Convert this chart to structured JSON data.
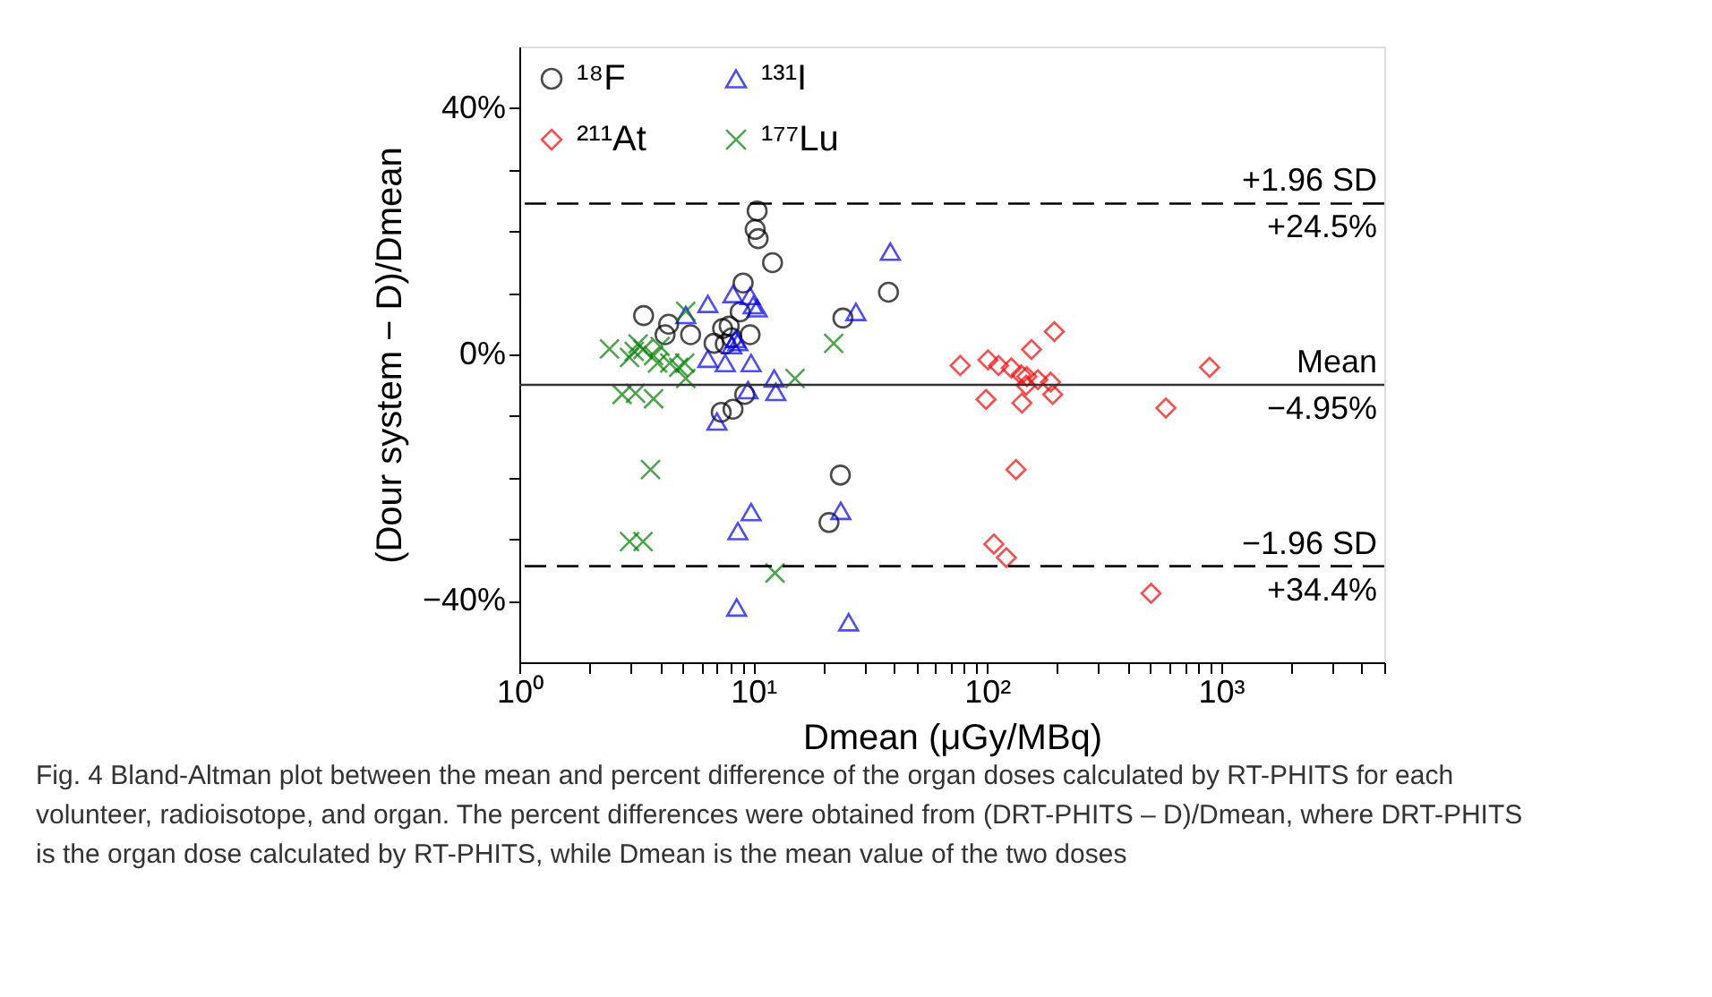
{
  "chart_data": {
    "type": "scatter",
    "xlabel": "Dmean (μGy/MBq)",
    "ylabel": "(Dour system − D)/Dmean",
    "log": "x",
    "grid": false,
    "legend": "top left",
    "xlim": [
      1,
      5000
    ],
    "xticks": [
      {
        "value": 1,
        "label": "10⁰"
      },
      {
        "value": 2,
        "label": null
      },
      {
        "value": 3,
        "label": null
      },
      {
        "value": 4,
        "label": null
      },
      {
        "value": 5,
        "label": null
      },
      {
        "value": 6,
        "label": null
      },
      {
        "value": 7,
        "label": null
      },
      {
        "value": 8,
        "label": null
      },
      {
        "value": 9,
        "label": null
      },
      {
        "value": 10,
        "label": "10¹"
      },
      {
        "value": 20,
        "label": null
      },
      {
        "value": 30,
        "label": null
      },
      {
        "value": 40,
        "label": null
      },
      {
        "value": 50,
        "label": null
      },
      {
        "value": 60,
        "label": null
      },
      {
        "value": 70,
        "label": null
      },
      {
        "value": 80,
        "label": null
      },
      {
        "value": 90,
        "label": null
      },
      {
        "value": 100,
        "label": "10²"
      },
      {
        "value": 200,
        "label": null
      },
      {
        "value": 300,
        "label": null
      },
      {
        "value": 400,
        "label": null
      },
      {
        "value": 500,
        "label": null
      },
      {
        "value": 600,
        "label": null
      },
      {
        "value": 700,
        "label": null
      },
      {
        "value": 800,
        "label": null
      },
      {
        "value": 900,
        "label": null
      },
      {
        "value": 1000,
        "label": "10³"
      },
      {
        "value": 2000,
        "label": null
      },
      {
        "value": 3000,
        "label": null
      },
      {
        "value": 4000,
        "label": null
      },
      {
        "value": 5000,
        "label": null
      }
    ],
    "ylim": [
      -50,
      50
    ],
    "yticks": [
      {
        "value": -40,
        "label": "−40%"
      },
      {
        "value": -30,
        "label": null
      },
      {
        "value": -20,
        "label": null
      },
      {
        "value": -10,
        "label": null
      },
      {
        "value": 0,
        "label": "0%"
      },
      {
        "value": 10,
        "label": null
      },
      {
        "value": 20,
        "label": null
      },
      {
        "value": 30,
        "label": null
      },
      {
        "value": 40,
        "label": "40%"
      }
    ],
    "series": [
      {
        "name": "¹⁸F",
        "color": "#000000",
        "marker": "circle",
        "x": [
          10.4,
          10.2,
          10.5,
          12.1,
          9.06,
          8.8,
          3.4,
          4.35,
          4.2,
          5.4,
          6.8,
          7.4,
          7.9,
          7.6,
          9.7,
          8.1,
          9.2,
          8.2,
          7.3,
          37.9,
          24.2,
          23.6,
          21.1
        ],
        "values": [
          23.3,
          20.3,
          18.8,
          14.9,
          11.6,
          6.9,
          6.3,
          4.9,
          3.2,
          3.2,
          1.8,
          4.2,
          4.6,
          1.7,
          3.2,
          2.7,
          -6.5,
          -8.9,
          -9.4,
          10.1,
          5.9,
          -19.6,
          -27.3
        ]
      },
      {
        "name": "¹³¹I",
        "color": "#0000ff",
        "marker": "triangle",
        "x": [
          38.6,
          27.5,
          6.4,
          8.2,
          9.7,
          10,
          10.4,
          5.15,
          8.4,
          8.6,
          8.1,
          6.4,
          7.6,
          9.8,
          12.3,
          12.5,
          9.5,
          7.0,
          9.8,
          8.6,
          23.7,
          8.5,
          25.6
        ],
        "values": [
          16.7,
          6.9,
          8.2,
          9.8,
          9.5,
          8.0,
          7.5,
          6.4,
          2.5,
          2.0,
          1.5,
          -0.7,
          -1.4,
          -1.4,
          -3.9,
          -6.1,
          -5.8,
          -10.9,
          -25.6,
          -28.7,
          -25.4,
          -41.1,
          -43.5
        ]
      },
      {
        "name": "²¹¹At",
        "color": "#ff0000",
        "marker": "diamond",
        "x": [
          76.8,
          101,
          112,
          127,
          155,
          194,
          140,
          148,
          165,
          187,
          191,
          147,
          99,
          141,
          133,
          895,
          582,
          107,
          121,
          503
        ],
        "values": [
          -1.8,
          -0.9,
          -1.8,
          -2.2,
          0.8,
          3.7,
          -3.3,
          -3.6,
          -4.1,
          -4.5,
          -6.5,
          -5.0,
          -7.3,
          -7.9,
          -18.7,
          -2.1,
          -8.7,
          -30.8,
          -33.0,
          -38.8
        ]
      },
      {
        "name": "¹⁷⁷Lu",
        "color": "#008000",
        "marker": "cross",
        "x": [
          2.43,
          2.96,
          3.22,
          3.38,
          3.1,
          3.75,
          4.0,
          3.9,
          4.4,
          4.8,
          5.1,
          5.15,
          5.15,
          2.75,
          3.14,
          3.75,
          3.64,
          2.96,
          3.38,
          12.4,
          15.1,
          22.1
        ],
        "values": [
          0.9,
          -0.5,
          1.7,
          0.8,
          0.5,
          -0.2,
          1.3,
          -1.4,
          -1.4,
          -2.1,
          -1.4,
          -3.9,
          7.0,
          -6.5,
          -6.3,
          -7.2,
          -18.7,
          -30.4,
          -30.4,
          -35.5,
          -3.9,
          1.8
        ]
      }
    ],
    "ref_lines": [
      {
        "axis": "y",
        "value": 24.5,
        "label": "+1.96 SD",
        "line_style": "dashed",
        "color": "#000000"
      },
      {
        "axis": "y",
        "value": -4.95,
        "label": "Mean",
        "line_style": "solid",
        "color": "#333333"
      },
      {
        "axis": "y",
        "value": -34.4,
        "label": "−1.96 SD",
        "line_style": "dashed",
        "color": "#000000"
      }
    ],
    "annotations": [
      {
        "text": "+24.5%",
        "y": 24.5
      },
      {
        "text": "−4.95%",
        "y": -4.95
      },
      {
        "text": "+34.4%",
        "y": -34.4
      },
      "Fig. 4 Bland-Altman plot between the mean and percent difference of the organ doses calculated by RT-PHITS for each volunteer, radioisotope, and organ. The percent differences were obtained from (DRT-PHITS – D)/Dmean, where DRT-PHITS is the organ dose calculated by RT-PHITS, while Dmean is the mean value of the two doses"
    ]
  }
}
